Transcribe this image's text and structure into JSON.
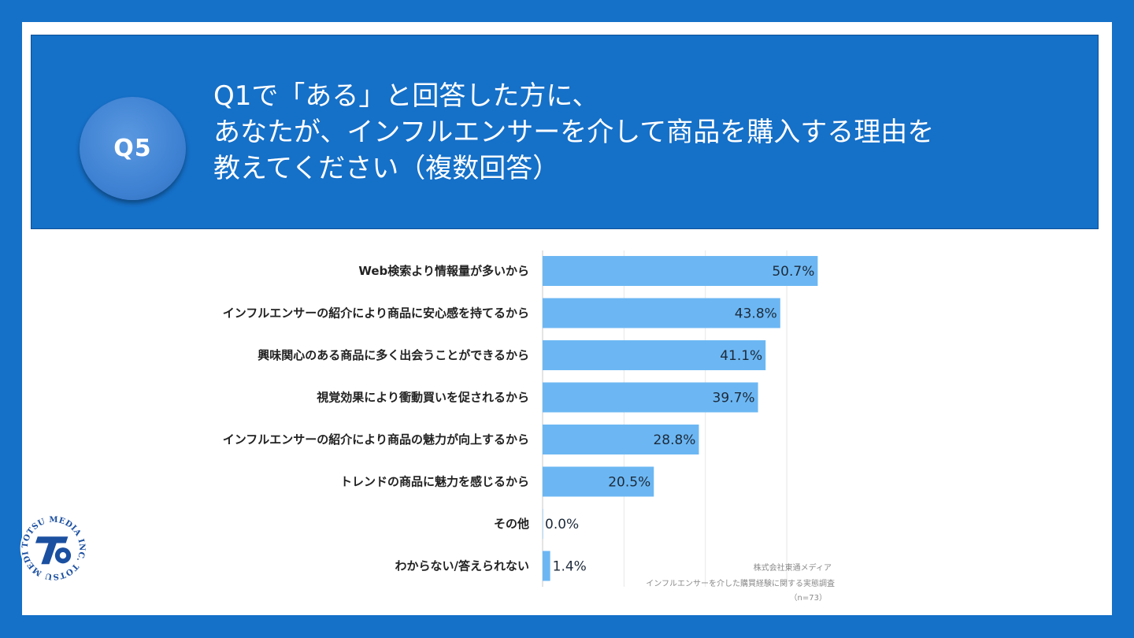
{
  "question": {
    "badge": "Q5",
    "lines": [
      "Q1で「ある」と回答した方に、",
      "あなたが、インフルエンサーを介して商品を購入する理由を",
      "教えてください（複数回答）"
    ]
  },
  "logo": {
    "text": "TOTSU MEDIA INC. TOTSU MEDIA INC."
  },
  "credit": {
    "company": "株式会社東通メディア",
    "survey": "インフルエンサーを介した購買経験に関する実態調査",
    "n": "（n=73）"
  },
  "colors": {
    "background": "#1570c8",
    "bar": "#6cb7f3",
    "badge": "#3f82d3"
  },
  "chart_data": {
    "type": "bar",
    "orientation": "horizontal",
    "categories": [
      "Web検索より情報量が多いから",
      "インフルエンサーの紹介により商品に安心感を持てるから",
      "興味関心のある商品に多く出会うことができるから",
      "視覚効果により衝動買いを促されるから",
      "インフルエンサーの紹介により商品の魅力が向上するから",
      "トレンドの商品に魅力を感じるから",
      "その他",
      "わからない/答えられない"
    ],
    "values": [
      50.7,
      43.8,
      41.1,
      39.7,
      28.8,
      20.5,
      0.0,
      1.4
    ],
    "value_labels": [
      "50.7%",
      "43.8%",
      "41.1%",
      "39.7%",
      "28.8%",
      "20.5%",
      "0.0%",
      "1.4%"
    ],
    "unit": "%",
    "xlim": [
      0,
      55
    ],
    "grid": true
  }
}
